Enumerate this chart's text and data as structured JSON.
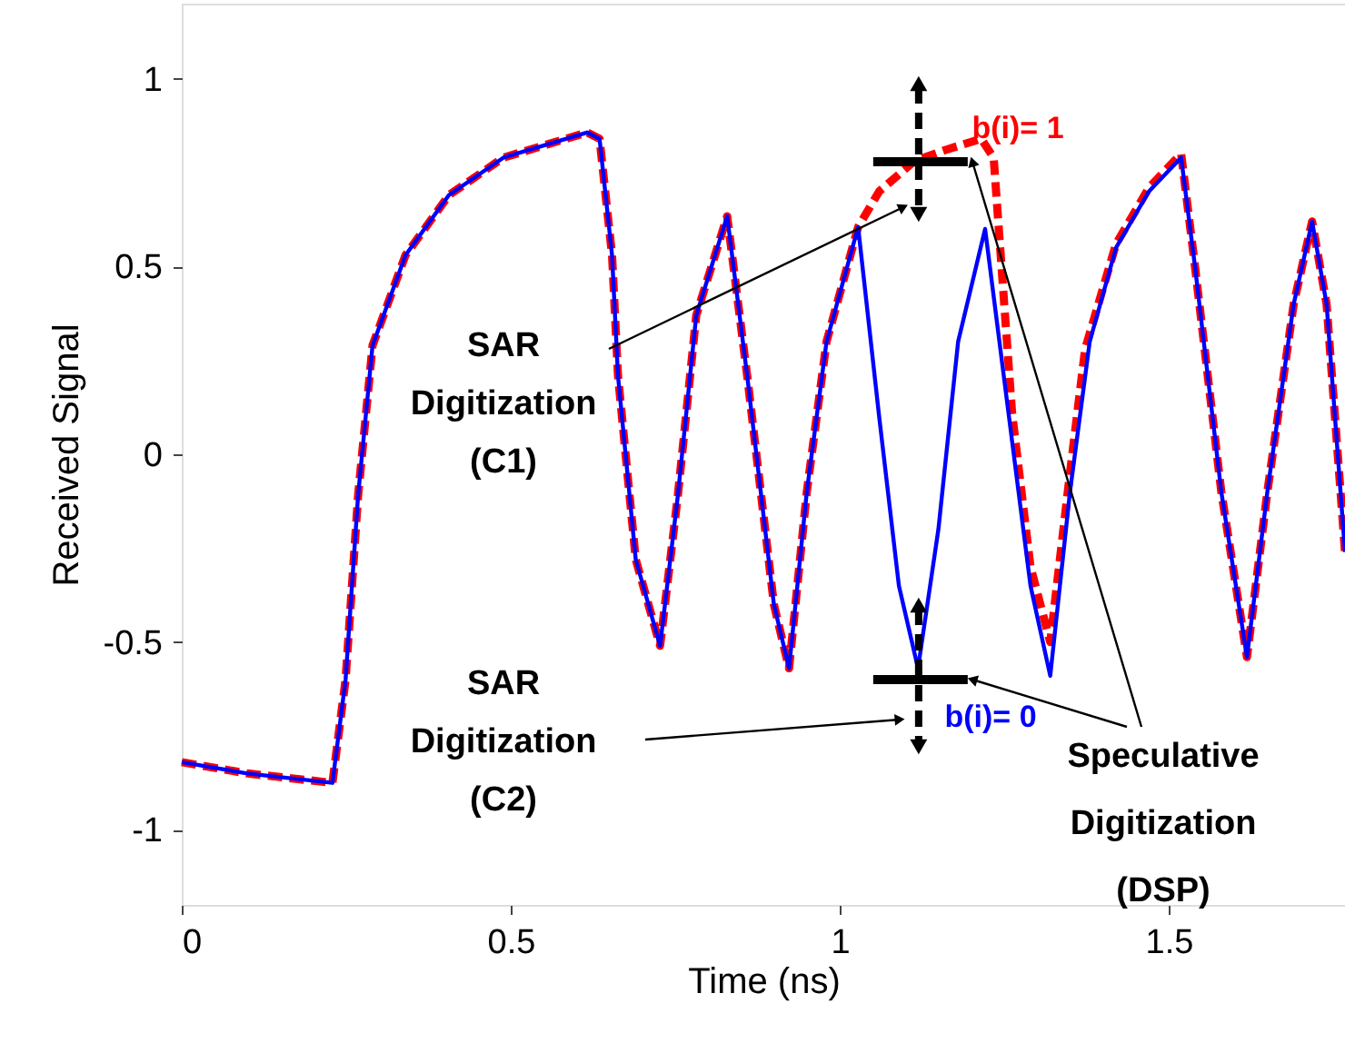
{
  "chart_data": {
    "type": "line",
    "xlabel": "Time (ns)",
    "ylabel": "Received Signal",
    "xlim": [
      0,
      1.768
    ],
    "ylim": [
      -1.2,
      1.2
    ],
    "xticks": [
      0,
      0.5,
      1,
      1.5
    ],
    "yticks": [
      -1,
      -0.5,
      0,
      0.5,
      1
    ],
    "grid": false,
    "marker": "none",
    "series": [
      {
        "color": "#0000ff",
        "line_style": "solid",
        "x": [
          0.0,
          0.1,
          0.229,
          0.249,
          0.268,
          0.29,
          0.34,
          0.406,
          0.489,
          0.616,
          0.635,
          0.654,
          0.663,
          0.69,
          0.727,
          0.754,
          0.782,
          0.829,
          0.86,
          0.9,
          0.923,
          0.95,
          0.98,
          1.028,
          1.06,
          1.09,
          1.119,
          1.15,
          1.18,
          1.221,
          1.25,
          1.29,
          1.32,
          1.35,
          1.38,
          1.42,
          1.47,
          1.519,
          1.54,
          1.58,
          1.619,
          1.65,
          1.69,
          1.718,
          1.74,
          1.768
        ],
        "values": [
          -0.82,
          -0.85,
          -0.875,
          -0.6,
          -0.11,
          0.29,
          0.53,
          0.69,
          0.79,
          0.857,
          0.84,
          0.53,
          0.21,
          -0.28,
          -0.51,
          -0.11,
          0.37,
          0.634,
          0.2,
          -0.4,
          -0.57,
          -0.1,
          0.3,
          0.605,
          0.1,
          -0.35,
          -0.57,
          -0.2,
          0.3,
          0.6,
          0.2,
          -0.35,
          -0.59,
          -0.1,
          0.3,
          0.55,
          0.7,
          0.79,
          0.5,
          -0.1,
          -0.54,
          -0.1,
          0.4,
          0.62,
          0.4,
          -0.26
        ]
      },
      {
        "color": "#ff0000",
        "line_style": "dashed",
        "x": [
          0.0,
          0.1,
          0.229,
          0.249,
          0.268,
          0.29,
          0.34,
          0.406,
          0.489,
          0.616,
          0.635,
          0.654,
          0.663,
          0.69,
          0.727,
          0.754,
          0.782,
          0.829,
          0.86,
          0.9,
          0.923,
          0.95,
          0.98,
          1.028,
          1.06,
          1.113,
          1.16,
          1.215,
          1.234,
          1.262,
          1.29,
          1.32,
          1.35,
          1.373,
          1.42,
          1.47,
          1.519,
          1.54,
          1.58,
          1.619,
          1.65,
          1.69,
          1.718,
          1.74,
          1.768
        ],
        "values": [
          -0.82,
          -0.85,
          -0.875,
          -0.6,
          -0.11,
          0.29,
          0.53,
          0.69,
          0.79,
          0.857,
          0.84,
          0.53,
          0.21,
          -0.28,
          -0.51,
          -0.11,
          0.37,
          0.634,
          0.2,
          -0.4,
          -0.57,
          -0.1,
          0.3,
          0.605,
          0.7,
          0.78,
          0.81,
          0.84,
          0.79,
          0.11,
          -0.3,
          -0.5,
          -0.05,
          0.28,
          0.56,
          0.71,
          0.8,
          0.5,
          -0.1,
          -0.54,
          -0.1,
          0.4,
          0.62,
          0.4,
          -0.26
        ]
      }
    ],
    "annotations": [
      "b(i)= 1",
      "b(i)= 0",
      "SAR\nDigitization\n(C1)",
      "SAR\nDigitization\n(C2)",
      "Speculative\nDigitization\n(DSP)"
    ]
  }
}
